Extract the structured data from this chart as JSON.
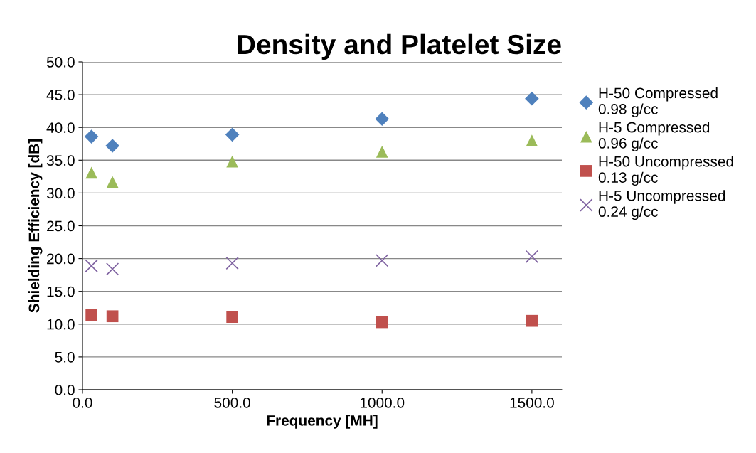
{
  "chart_data": {
    "type": "scatter",
    "title": "Density and Platelet Size",
    "xlabel": "Frequency [MH]",
    "ylabel": "Shielding Efficiency [dB]",
    "x": [
      30,
      100,
      500,
      1000,
      1500
    ],
    "series": [
      {
        "name": "H-50 Compressed\n0.98 g/cc",
        "color": "#4f81bd",
        "marker": "diamond",
        "values": [
          38.6,
          37.2,
          38.9,
          41.3,
          44.4
        ]
      },
      {
        "name": "H-5 Compressed\n0.96 g/cc",
        "color": "#9bbb59",
        "marker": "triangle",
        "values": [
          33.1,
          31.7,
          34.8,
          36.3,
          38.0
        ]
      },
      {
        "name": "H-50 Uncompressed\n0.13 g/cc",
        "color": "#c0504d",
        "marker": "square",
        "values": [
          11.4,
          11.2,
          11.1,
          10.3,
          10.5
        ]
      },
      {
        "name": "H-5 Uncompressed\n0.24 g/cc",
        "color": "#8064a2",
        "marker": "cross",
        "values": [
          18.9,
          18.4,
          19.3,
          19.7,
          20.3
        ]
      }
    ],
    "xlim": [
      0,
      1600
    ],
    "ylim": [
      0,
      50
    ],
    "xticks": [
      {
        "value": 0,
        "label": "0.0"
      },
      {
        "value": 500,
        "label": "500.0"
      },
      {
        "value": 1000,
        "label": "1000.0"
      },
      {
        "value": 1500,
        "label": "1500.0"
      }
    ],
    "yticks": [
      {
        "value": 0,
        "label": "0.0"
      },
      {
        "value": 5,
        "label": "5.0"
      },
      {
        "value": 10,
        "label": "10.0"
      },
      {
        "value": 15,
        "label": "15.0"
      },
      {
        "value": 20,
        "label": "20.0"
      },
      {
        "value": 25,
        "label": "25.0"
      },
      {
        "value": 30,
        "label": "30.0"
      },
      {
        "value": 35,
        "label": "35.0"
      },
      {
        "value": 40,
        "label": "40.0"
      },
      {
        "value": 45,
        "label": "45.0"
      },
      {
        "value": 50,
        "label": "50.0"
      }
    ],
    "grid": "y",
    "legend": "right"
  }
}
